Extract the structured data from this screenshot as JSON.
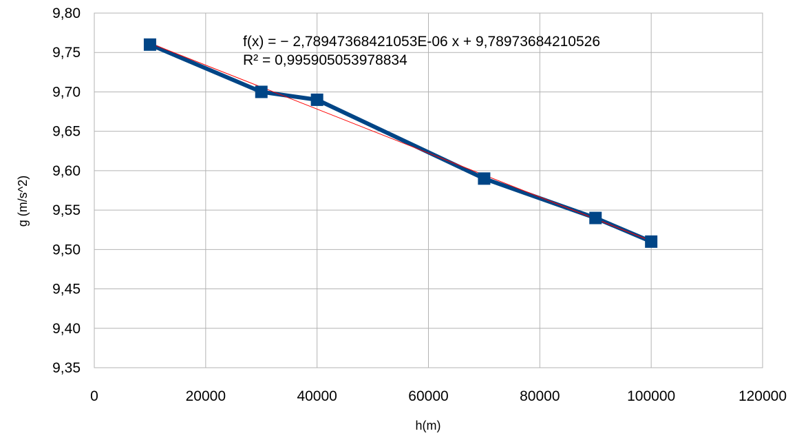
{
  "chart_data": {
    "type": "scatter",
    "xlabel": "h(m)",
    "ylabel": "g (m/s^2)",
    "xlim": [
      0,
      120000
    ],
    "ylim": [
      9.35,
      9.8
    ],
    "x_ticks": [
      0,
      20000,
      40000,
      60000,
      80000,
      100000,
      120000
    ],
    "x_tick_labels": [
      "0",
      "20000",
      "40000",
      "60000",
      "80000",
      "100000",
      "120000"
    ],
    "y_ticks": [
      9.35,
      9.4,
      9.45,
      9.5,
      9.55,
      9.6,
      9.65,
      9.7,
      9.75,
      9.8
    ],
    "y_tick_labels": [
      "9,35",
      "9,40",
      "9,45",
      "9,50",
      "9,55",
      "9,60",
      "9,65",
      "9,70",
      "9,75",
      "9,80"
    ],
    "grid": true,
    "legend": "none",
    "series": [
      {
        "x": [
          10000,
          30000,
          40000,
          70000,
          90000,
          100000
        ],
        "y": [
          9.76,
          9.7,
          9.69,
          9.59,
          9.54,
          9.51
        ],
        "color": "#004586",
        "marker": "square",
        "connected": true
      }
    ],
    "trendline": {
      "type": "linear",
      "slope": -2.78947368421053e-06,
      "intercept": 9.78973684210526,
      "x_range": [
        10000,
        100000
      ],
      "color": "#ff0000"
    },
    "annotations": [
      "f(x) = − 2,78947368421053E-06 x + 9,78973684210526",
      "R² = 0,995905053978834"
    ]
  }
}
